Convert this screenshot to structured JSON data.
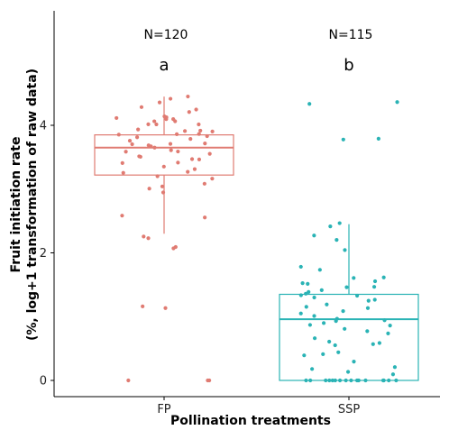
{
  "chart_data": {
    "type": "boxplot-jitter",
    "xlabel": "Pollination treatments",
    "ylabel_line1": "Fruit initiation rate",
    "ylabel_line2": "(%, log+1 transformation of raw data)",
    "yticks": [
      0,
      2,
      4
    ],
    "ylim": [
      -0.25,
      5.8
    ],
    "grid": false,
    "groups": [
      {
        "name": "FP",
        "color": "#e07b72",
        "n_label": "N=120",
        "letter": "a",
        "box": {
          "min": 0.0,
          "q1": 3.22,
          "median": 3.65,
          "q3": 3.85,
          "whisker_low": 2.3,
          "whisker_high": 4.45
        },
        "points": [
          4.45,
          4.4,
          4.35,
          4.3,
          4.25,
          4.2,
          4.15,
          4.12,
          4.1,
          4.1,
          4.08,
          4.05,
          4.05,
          4.02,
          4.0,
          4.0,
          3.95,
          3.92,
          3.9,
          3.9,
          3.88,
          3.85,
          3.85,
          3.82,
          3.8,
          3.78,
          3.75,
          3.72,
          3.7,
          3.7,
          3.7,
          3.68,
          3.65,
          3.62,
          3.6,
          3.58,
          3.55,
          3.52,
          3.5,
          3.48,
          3.45,
          3.42,
          3.4,
          3.35,
          3.3,
          3.28,
          3.25,
          3.2,
          3.15,
          3.1,
          3.05,
          3.0,
          2.95,
          2.6,
          2.55,
          2.25,
          2.22,
          2.1,
          2.08,
          1.15,
          1.15,
          0,
          0,
          0
        ]
      },
      {
        "name": "SSP",
        "color": "#2ab3b5",
        "n_label": "N=115",
        "letter": "b",
        "box": {
          "min": 0.0,
          "q1": 0.0,
          "median": 0.96,
          "q3": 1.35,
          "whisker_low": 0.0,
          "whisker_high": 2.45
        },
        "points": [
          4.35,
          4.35,
          3.78,
          3.78,
          2.45,
          2.42,
          2.28,
          2.2,
          2.05,
          1.78,
          1.75,
          1.62,
          1.6,
          1.55,
          1.52,
          1.5,
          1.48,
          1.45,
          1.42,
          1.38,
          1.35,
          1.35,
          1.32,
          1.3,
          1.28,
          1.25,
          1.2,
          1.15,
          1.12,
          1.1,
          1.05,
          1.0,
          0.98,
          0.96,
          0.94,
          0.9,
          0.88,
          0.85,
          0.82,
          0.78,
          0.72,
          0.65,
          0.62,
          0.6,
          0.58,
          0.55,
          0.45,
          0.42,
          0.38,
          0.3,
          0.22,
          0.18,
          0.15,
          0.1,
          0,
          0,
          0,
          0,
          0,
          0,
          0,
          0,
          0,
          0,
          0,
          0,
          0,
          0,
          0,
          0
        ]
      }
    ]
  }
}
